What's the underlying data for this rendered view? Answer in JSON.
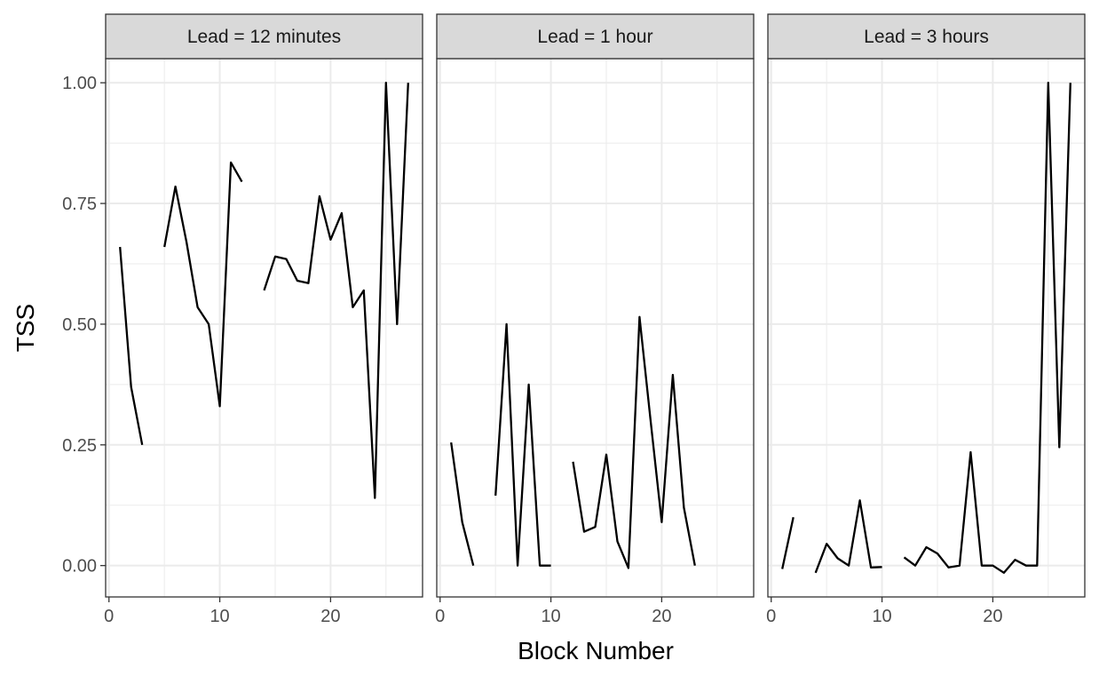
{
  "chart_data": {
    "type": "line",
    "xlabel": "Block Number",
    "ylabel": "TSS",
    "xlim": [
      -0.3,
      28.3
    ],
    "ylim": [
      -0.065,
      1.05
    ],
    "x_ticks": [
      0,
      10,
      20
    ],
    "y_ticks": [
      0,
      0.25,
      0.5,
      0.75,
      1.0
    ],
    "y_tick_labels": [
      "0.00",
      "0.25",
      "0.50",
      "0.75",
      "1.00"
    ],
    "grid": true,
    "colors": {
      "line": "#000000",
      "strip": "#d9d9d9",
      "grid": "#ebebeb",
      "border": "#333333"
    },
    "panels": [
      {
        "label": "Lead = 12 minutes",
        "points": [
          [
            1,
            0.66
          ],
          [
            2,
            0.37
          ],
          [
            3,
            0.25
          ],
          [
            4,
            null
          ],
          [
            5,
            0.66
          ],
          [
            6,
            0.785
          ],
          [
            7,
            0.67
          ],
          [
            8,
            0.535
          ],
          [
            9,
            0.5
          ],
          [
            10,
            0.33
          ],
          [
            11,
            0.835
          ],
          [
            12,
            0.795
          ],
          [
            13,
            null
          ],
          [
            14,
            0.57
          ],
          [
            15,
            0.64
          ],
          [
            16,
            0.635
          ],
          [
            17,
            0.59
          ],
          [
            18,
            0.585
          ],
          [
            19,
            0.765
          ],
          [
            20,
            0.675
          ],
          [
            21,
            0.73
          ],
          [
            22,
            0.535
          ],
          [
            23,
            0.57
          ],
          [
            24,
            0.14
          ],
          [
            25,
            1.0
          ],
          [
            26,
            0.5
          ],
          [
            27,
            1.0
          ]
        ]
      },
      {
        "label": "Lead = 1 hour",
        "points": [
          [
            1,
            0.255
          ],
          [
            2,
            0.09
          ],
          [
            3,
            0.0
          ],
          [
            4,
            null
          ],
          [
            5,
            0.145
          ],
          [
            6,
            0.5
          ],
          [
            7,
            0.0
          ],
          [
            8,
            0.375
          ],
          [
            9,
            0.0
          ],
          [
            10,
            0.0
          ],
          [
            11,
            null
          ],
          [
            12,
            0.215
          ],
          [
            13,
            0.07
          ],
          [
            14,
            0.08
          ],
          [
            15,
            0.23
          ],
          [
            16,
            0.05
          ],
          [
            17,
            -0.005
          ],
          [
            18,
            0.515
          ],
          [
            19,
            0.3
          ],
          [
            20,
            0.09
          ],
          [
            21,
            0.395
          ],
          [
            22,
            0.12
          ],
          [
            23,
            0.0
          ]
        ]
      },
      {
        "label": "Lead = 3 hours",
        "points": [
          [
            1,
            -0.007
          ],
          [
            2,
            0.1
          ],
          [
            3,
            null
          ],
          [
            4,
            -0.015
          ],
          [
            5,
            0.045
          ],
          [
            6,
            0.015
          ],
          [
            7,
            0.0
          ],
          [
            8,
            0.135
          ],
          [
            9,
            -0.004
          ],
          [
            10,
            -0.003
          ],
          [
            11,
            null
          ],
          [
            12,
            0.017
          ],
          [
            13,
            0.0
          ],
          [
            14,
            0.038
          ],
          [
            15,
            0.025
          ],
          [
            16,
            -0.004
          ],
          [
            17,
            0.0
          ],
          [
            18,
            0.235
          ],
          [
            19,
            0.0
          ],
          [
            20,
            0.0
          ],
          [
            21,
            -0.015
          ],
          [
            22,
            0.012
          ],
          [
            23,
            0.0
          ],
          [
            24,
            0.0
          ],
          [
            25,
            1.0
          ],
          [
            26,
            0.245
          ],
          [
            27,
            1.0
          ]
        ]
      }
    ]
  }
}
